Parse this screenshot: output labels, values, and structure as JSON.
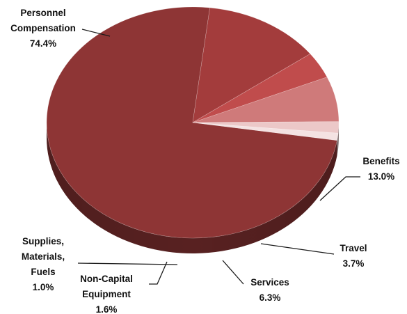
{
  "chart_data": {
    "type": "pie",
    "title": "",
    "slices": [
      {
        "label": [
          "Personnel",
          "Compensation"
        ],
        "percent_label": "74.4%",
        "value": 74.4,
        "color": "#8e3535"
      },
      {
        "label": [
          "Benefits"
        ],
        "percent_label": "13.0%",
        "value": 13.0,
        "color": "#a33c3c"
      },
      {
        "label": [
          "Travel"
        ],
        "percent_label": "3.7%",
        "value": 3.7,
        "color": "#c04c4c"
      },
      {
        "label": [
          "Services"
        ],
        "percent_label": "6.3%",
        "value": 6.3,
        "color": "#cf7a7a"
      },
      {
        "label": [
          "Non-Capital",
          "Equipment"
        ],
        "percent_label": "1.6%",
        "value": 1.6,
        "color": "#ecc8c8"
      },
      {
        "label": [
          "Supplies,",
          "Materials,",
          "Fuels"
        ],
        "percent_label": "1.0%",
        "value": 1.0,
        "color": "#f4e2e2"
      }
    ]
  }
}
